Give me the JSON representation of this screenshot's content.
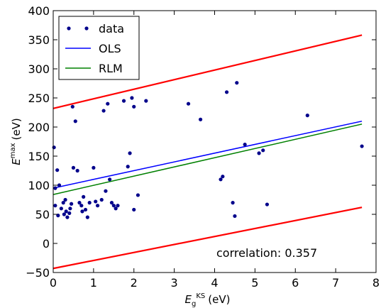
{
  "chart_data": {
    "type": "scatter",
    "xlabel": {
      "main": "E",
      "sub": "g",
      "sup": "KS",
      "unit": "(eV)"
    },
    "ylabel": {
      "main": "E",
      "sup": "max",
      "unit": "(eV)"
    },
    "xlim": [
      0,
      8
    ],
    "ylim": [
      -50,
      400
    ],
    "xticks": [
      "0",
      "1",
      "2",
      "3",
      "4",
      "5",
      "6",
      "7",
      "8"
    ],
    "yticks": [
      "−50",
      "0",
      "50",
      "100",
      "150",
      "200",
      "250",
      "300",
      "350",
      "400"
    ],
    "grid": false,
    "legend": {
      "placement": "top-left",
      "entries": [
        "data",
        "OLS",
        "RLM"
      ]
    },
    "annotation": "correlation: 0.357",
    "colors": {
      "data": "#00008b",
      "OLS": "#0000ff",
      "RLM": "#008000",
      "bounds": "#ff0000"
    },
    "series": [
      {
        "name": "data",
        "type": "scatter",
        "points": [
          [
            0.02,
            165
          ],
          [
            0.05,
            95
          ],
          [
            0.05,
            65
          ],
          [
            0.1,
            126
          ],
          [
            0.12,
            48
          ],
          [
            0.15,
            100
          ],
          [
            0.2,
            60
          ],
          [
            0.25,
            70
          ],
          [
            0.27,
            50
          ],
          [
            0.3,
            75
          ],
          [
            0.32,
            55
          ],
          [
            0.35,
            45
          ],
          [
            0.4,
            52
          ],
          [
            0.42,
            60
          ],
          [
            0.45,
            68
          ],
          [
            0.48,
            235
          ],
          [
            0.5,
            130
          ],
          [
            0.55,
            210
          ],
          [
            0.6,
            125
          ],
          [
            0.65,
            70
          ],
          [
            0.7,
            65
          ],
          [
            0.72,
            55
          ],
          [
            0.75,
            80
          ],
          [
            0.8,
            58
          ],
          [
            0.85,
            45
          ],
          [
            0.9,
            70
          ],
          [
            1.0,
            130
          ],
          [
            1.05,
            72
          ],
          [
            1.1,
            65
          ],
          [
            1.2,
            75
          ],
          [
            1.25,
            228
          ],
          [
            1.3,
            90
          ],
          [
            1.35,
            240
          ],
          [
            1.4,
            110
          ],
          [
            1.45,
            70
          ],
          [
            1.5,
            65
          ],
          [
            1.55,
            60
          ],
          [
            1.6,
            65
          ],
          [
            1.75,
            245
          ],
          [
            1.85,
            132
          ],
          [
            1.9,
            155
          ],
          [
            1.95,
            250
          ],
          [
            2.0,
            235
          ],
          [
            2.0,
            58
          ],
          [
            2.1,
            83
          ],
          [
            2.3,
            245
          ],
          [
            3.35,
            240
          ],
          [
            3.65,
            213
          ],
          [
            4.15,
            110
          ],
          [
            4.2,
            115
          ],
          [
            4.3,
            260
          ],
          [
            4.45,
            70
          ],
          [
            4.5,
            47
          ],
          [
            4.55,
            276
          ],
          [
            4.75,
            170
          ],
          [
            5.1,
            155
          ],
          [
            5.2,
            160
          ],
          [
            5.3,
            67
          ],
          [
            6.3,
            220
          ],
          [
            7.65,
            167
          ]
        ]
      },
      {
        "name": "OLS",
        "type": "line",
        "x": [
          0,
          7.65
        ],
        "y": [
          95,
          210
        ]
      },
      {
        "name": "RLM",
        "type": "line",
        "x": [
          0,
          7.65
        ],
        "y": [
          84,
          205
        ]
      },
      {
        "type": "line",
        "role": "upper-bound",
        "x": [
          0,
          7.65
        ],
        "y": [
          232,
          358
        ]
      },
      {
        "type": "line",
        "role": "lower-bound",
        "x": [
          0,
          7.65
        ],
        "y": [
          -43,
          62
        ]
      }
    ]
  }
}
